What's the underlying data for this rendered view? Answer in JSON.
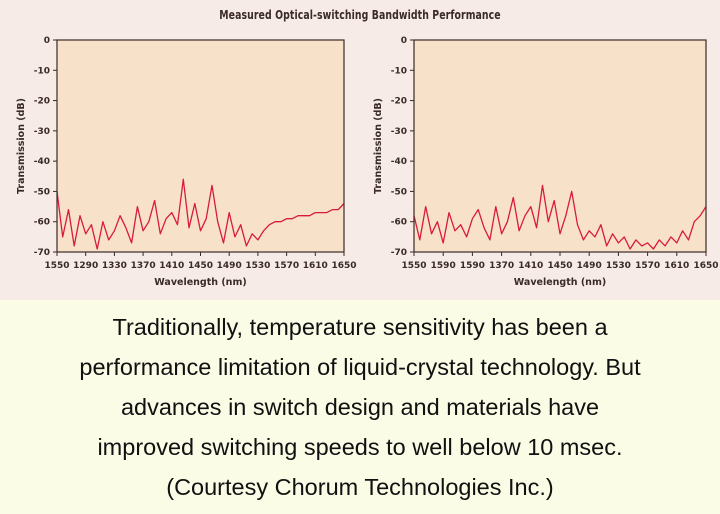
{
  "figure_title": "Measured Optical-switching Bandwidth Performance",
  "caption": {
    "lines": [
      "Traditionally, temperature sensitivity has been a",
      "performance limitation of liquid-crystal technology. But",
      "advances in switch design and materials have",
      "improved switching speeds to well below 10 msec.",
      "(Courtesy Chorum Technologies Inc.)"
    ]
  },
  "colors": {
    "series": "#d81b3c",
    "plot_bg": "#f7e1c9",
    "figure_bg": "#f6ebe6",
    "caption_bg": "#fafce6"
  },
  "chart_data": [
    {
      "type": "line",
      "xlabel": "Wavelength (nm)",
      "ylabel": "Transmission (dB)",
      "xlim": [
        1550,
        1650
      ],
      "ylim": [
        -70,
        0
      ],
      "xticks": [
        "1550",
        "1290",
        "1330",
        "1370",
        "1410",
        "1450",
        "1490",
        "1530",
        "1570",
        "1610",
        "1650"
      ],
      "yticks": [
        "0",
        "-10",
        "-20",
        "-30",
        "-40",
        "-50",
        "-60",
        "-70"
      ],
      "grid": false,
      "x": [
        1550,
        1552,
        1554,
        1556,
        1558,
        1560,
        1562,
        1564,
        1566,
        1568,
        1570,
        1572,
        1574,
        1576,
        1578,
        1580,
        1582,
        1584,
        1586,
        1588,
        1590,
        1592,
        1594,
        1596,
        1598,
        1600,
        1602,
        1604,
        1606,
        1608,
        1610,
        1612,
        1614,
        1616,
        1618,
        1620,
        1622,
        1624,
        1626,
        1628,
        1630,
        1632,
        1634,
        1636,
        1638,
        1640,
        1642,
        1644,
        1646,
        1648,
        1650
      ],
      "series": [
        {
          "values": [
            -50,
            -65,
            -56,
            -68,
            -58,
            -64,
            -61,
            -69,
            -60,
            -66,
            -63,
            -58,
            -62,
            -67,
            -55,
            -63,
            -60,
            -53,
            -64,
            -59,
            -57,
            -61,
            -46,
            -62,
            -54,
            -63,
            -59,
            -48,
            -60,
            -67,
            -57,
            -65,
            -61,
            -68,
            -64,
            -66,
            -63,
            -61,
            -60,
            -60,
            -59,
            -59,
            -58,
            -58,
            -58,
            -57,
            -57,
            -57,
            -56,
            -56,
            -54
          ]
        }
      ]
    },
    {
      "type": "line",
      "xlabel": "Wavelength (nm)",
      "ylabel": "Transmission (dB)",
      "xlim": [
        1550,
        1650
      ],
      "ylim": [
        -70,
        0
      ],
      "xticks": [
        "1550",
        "1590",
        "1590",
        "1370",
        "1410",
        "1450",
        "1490",
        "1530",
        "1570",
        "1610",
        "1650"
      ],
      "yticks": [
        "0",
        "-10",
        "-20",
        "-30",
        "-40",
        "-50",
        "-60",
        "-70"
      ],
      "grid": false,
      "x": [
        1550,
        1552,
        1554,
        1556,
        1558,
        1560,
        1562,
        1564,
        1566,
        1568,
        1570,
        1572,
        1574,
        1576,
        1578,
        1580,
        1582,
        1584,
        1586,
        1588,
        1590,
        1592,
        1594,
        1596,
        1598,
        1600,
        1602,
        1604,
        1606,
        1608,
        1610,
        1612,
        1614,
        1616,
        1618,
        1620,
        1622,
        1624,
        1626,
        1628,
        1630,
        1632,
        1634,
        1636,
        1638,
        1640,
        1642,
        1644,
        1646,
        1648,
        1650
      ],
      "series": [
        {
          "values": [
            -58,
            -66,
            -55,
            -64,
            -60,
            -67,
            -57,
            -63,
            -61,
            -65,
            -59,
            -56,
            -62,
            -66,
            -55,
            -64,
            -60,
            -52,
            -63,
            -58,
            -55,
            -62,
            -48,
            -60,
            -53,
            -64,
            -58,
            -50,
            -61,
            -66,
            -63,
            -65,
            -61,
            -68,
            -64,
            -67,
            -65,
            -69,
            -66,
            -68,
            -67,
            -69,
            -66,
            -68,
            -65,
            -67,
            -63,
            -66,
            -60,
            -58,
            -55
          ]
        }
      ]
    }
  ]
}
